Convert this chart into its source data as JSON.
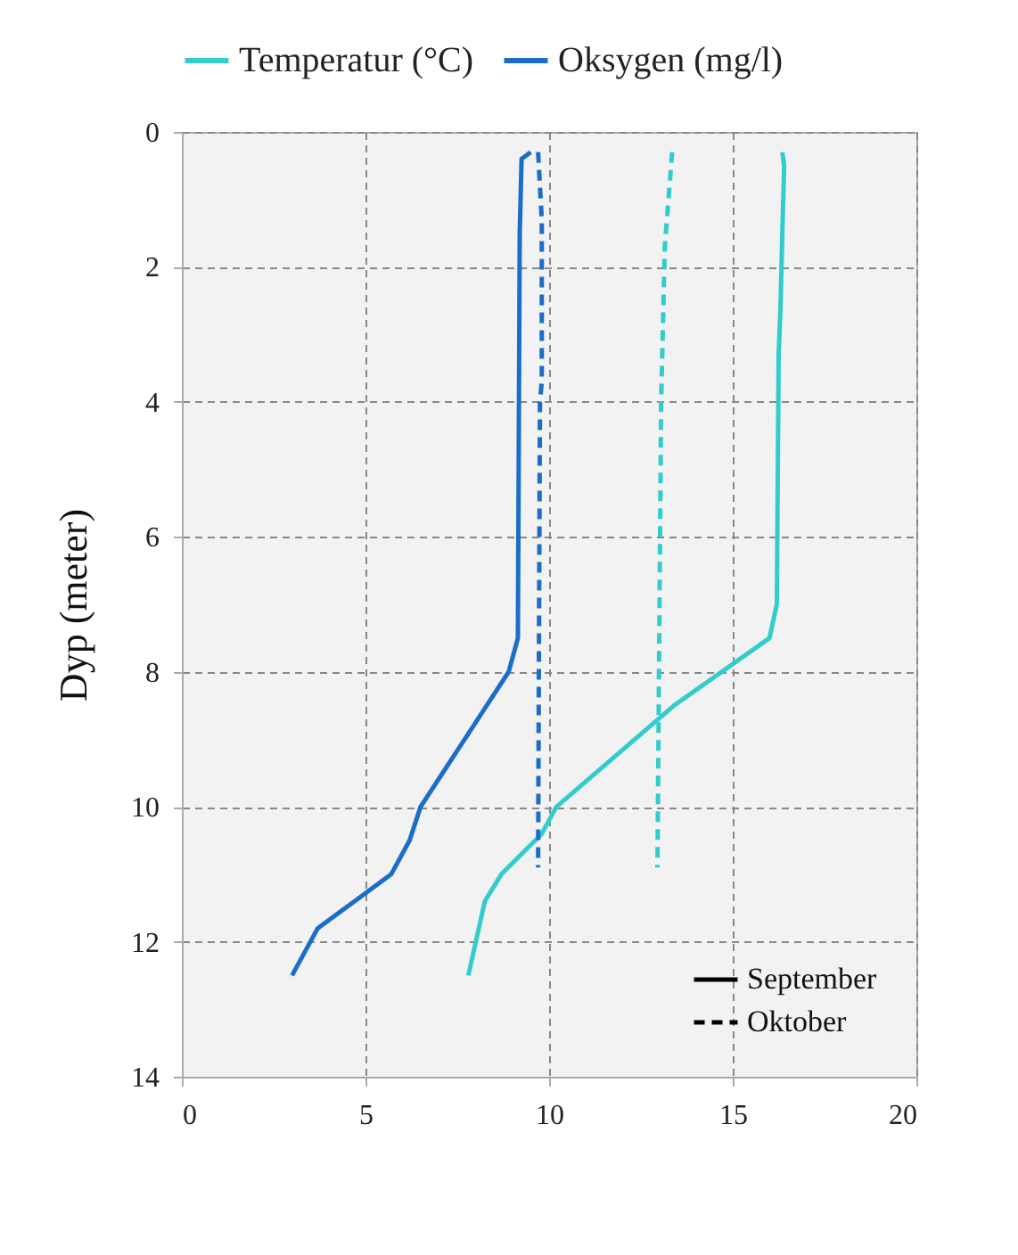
{
  "chart_data": {
    "type": "line",
    "ylabel": "Dyp (meter)",
    "xlim": [
      0,
      20
    ],
    "xticks": [
      0,
      5,
      10,
      15,
      20
    ],
    "ylim": [
      14,
      0
    ],
    "yticks": [
      0,
      2,
      4,
      6,
      8,
      10,
      12,
      14
    ],
    "grid": true,
    "legend": "top",
    "annotations": [
      "September",
      "Oktober"
    ],
    "series": [
      {
        "name": "Temperatur (°C)",
        "color": "#33cccc",
        "line_style": "solid",
        "x": [
          16.35,
          16.4,
          16.35,
          16.3,
          16.25,
          16.2,
          16.0,
          13.4,
          10.2,
          9.8,
          8.7,
          8.25,
          7.8
        ],
        "values": [
          0.3,
          0.5,
          1.5,
          2.6,
          3.3,
          7.0,
          7.5,
          8.5,
          10.0,
          10.4,
          11.0,
          11.4,
          12.5
        ]
      },
      {
        "name": "Oksygen (mg/l)",
        "color": "#1a6ec8",
        "line_style": "solid",
        "x": [
          9.5,
          9.25,
          9.2,
          9.15,
          8.9,
          6.5,
          6.2,
          5.7,
          4.7,
          3.7,
          3.0
        ],
        "values": [
          0.3,
          0.4,
          1.5,
          7.5,
          8.0,
          10.0,
          10.5,
          11.0,
          11.4,
          11.8,
          12.5
        ]
      },
      {
        "color": "#33cccc",
        "line_style": "dashed",
        "x": [
          13.35,
          13.15,
          13.05,
          12.95
        ],
        "values": [
          0.3,
          1.7,
          4.0,
          10.9
        ]
      },
      {
        "color": "#1a6ec8",
        "line_style": "dashed",
        "x": [
          9.7,
          9.8,
          9.8,
          9.75,
          9.7
        ],
        "values": [
          0.3,
          1.3,
          3.7,
          4.0,
          10.9
        ]
      }
    ]
  }
}
